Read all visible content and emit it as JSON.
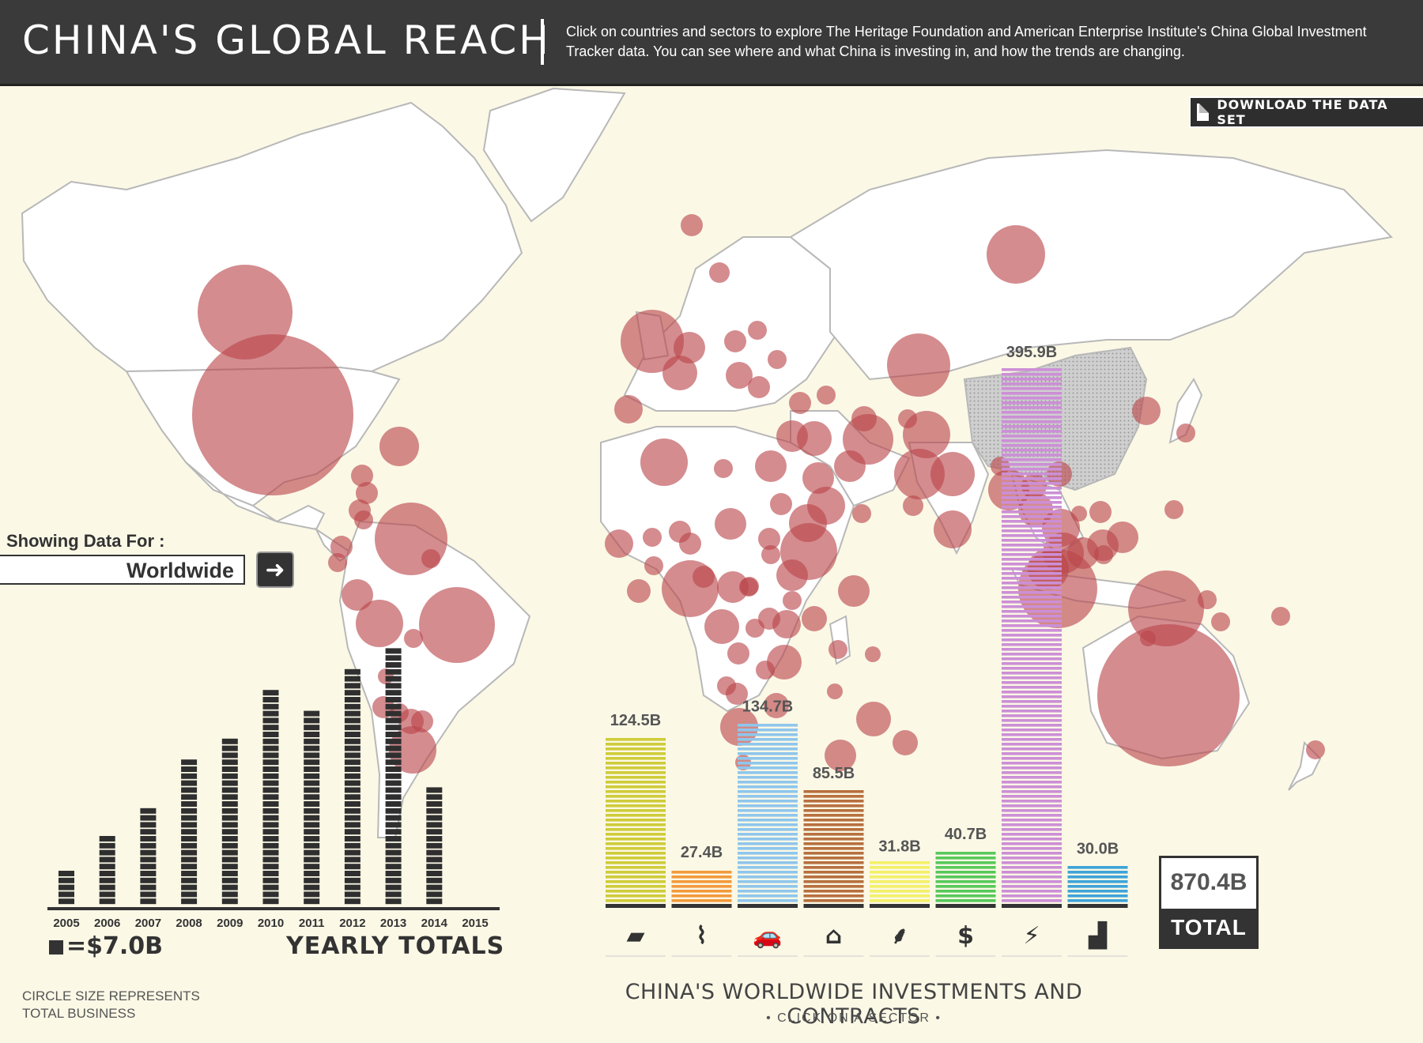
{
  "header": {
    "title": "CHINA'S GLOBAL REACH",
    "intro": "Click on countries and sectors to explore The Heritage Foundation and American Enterprise Institute's China Global Investment Tracker data. You can see where and what China is investing in, and how the trends are changing."
  },
  "download_label": "DOWNLOAD THE DATA SET",
  "region": {
    "label": "Showing Data For :",
    "value": "Worldwide"
  },
  "yearly": {
    "title": "YEARLY TOTALS",
    "unit_label": "=$7.0B",
    "unit_value_billion": 7.0,
    "years": [
      "2005",
      "2006",
      "2007",
      "2008",
      "2009",
      "2010",
      "2011",
      "2012",
      "2013",
      "2014",
      "2015"
    ],
    "blocks": [
      5,
      10,
      14,
      21,
      24,
      31,
      28,
      34,
      37,
      17,
      0
    ]
  },
  "circle_note": "CIRCLE SIZE REPRESENTS TOTAL BUSINESS",
  "sectors": {
    "title": "CHINA'S WORLDWIDE INVESTMENTS AND CONTRACTS",
    "subtitle": "• CLICK ON A SECTOR •",
    "items": [
      {
        "id": "metals",
        "icon": "metal-ingot-icon",
        "value": 124.5,
        "label": "124.5B",
        "color": "#cfcc3a"
      },
      {
        "id": "technology",
        "icon": "dna-icon",
        "value": 27.4,
        "label": "27.4B",
        "color": "#f29a3c"
      },
      {
        "id": "transport",
        "icon": "car-bus-icon",
        "value": 134.7,
        "label": "134.7B",
        "color": "#8fc6ec"
      },
      {
        "id": "real-estate",
        "icon": "house-icon",
        "value": 85.5,
        "label": "85.5B",
        "color": "#b7703f"
      },
      {
        "id": "agriculture",
        "icon": "wheat-icon",
        "value": 31.8,
        "label": "31.8B",
        "color": "#f3f069"
      },
      {
        "id": "finance",
        "icon": "dollar-icon",
        "value": 40.7,
        "label": "40.7B",
        "color": "#57c95a"
      },
      {
        "id": "energy",
        "icon": "lightning-icon",
        "value": 395.9,
        "label": "395.9B",
        "color": "#cc8fd6"
      },
      {
        "id": "industry",
        "icon": "factory-icon",
        "value": 30.0,
        "label": "30.0B",
        "color": "#3ea3d8"
      }
    ]
  },
  "total": {
    "value": "870.4B",
    "label": "TOTAL"
  },
  "colors": {
    "map_land": "#ffffff",
    "map_bg": "#fbf8e6",
    "circle": "#b9454a",
    "china": "#c9c9c9",
    "dark": "#333333"
  }
}
